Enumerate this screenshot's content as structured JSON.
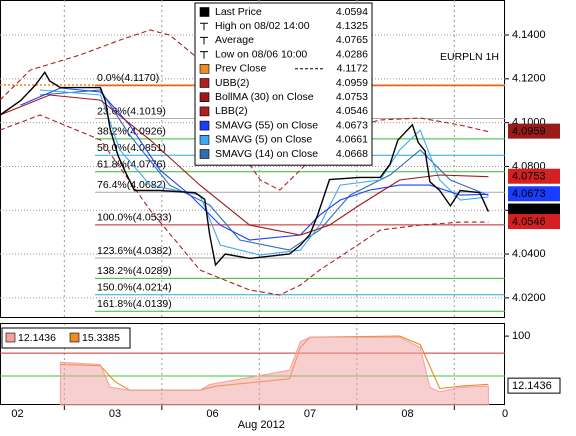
{
  "chart_data": [
    {
      "type": "line",
      "annotation": "EURPLN 1H",
      "xlabel": "Aug 2012",
      "xlim": [
        -0.18,
        5.0
      ],
      "xticks": [
        {
          "value": 0,
          "label": "02"
        },
        {
          "value": 1,
          "label": "03"
        },
        {
          "value": 2,
          "label": "06"
        },
        {
          "value": 3,
          "label": "07"
        },
        {
          "value": 4,
          "label": "08"
        },
        {
          "value": 5,
          "label": "0"
        }
      ],
      "ylim": [
        4.0108,
        4.156
      ],
      "yticks": [
        {
          "value": 4.14,
          "label": "4.1400"
        },
        {
          "value": 4.12,
          "label": "4.1200"
        },
        {
          "value": 4.1,
          "label": "4.1000"
        },
        {
          "value": 4.08,
          "label": "4.0800"
        },
        {
          "value": 4.06,
          "label": "4.0600"
        },
        {
          "value": 4.04,
          "label": "4.0400"
        },
        {
          "value": 4.02,
          "label": "4.0200"
        }
      ],
      "grid": true,
      "series": [
        {
          "name": "Last Price",
          "color": "#000000",
          "tag_color": "#000000",
          "x": [
            -0.18,
            0.03,
            0.18,
            0.28,
            0.33,
            0.44,
            0.64,
            0.85,
            0.9,
            0.95,
            1.03,
            1.1,
            1.2,
            1.46,
            1.82,
            1.92,
            1.97,
            2.03,
            2.13,
            2.38,
            2.79,
            2.9,
            3.0,
            3.08,
            3.2,
            3.51,
            3.72,
            3.82,
            3.9,
            4.05,
            4.11,
            4.18,
            4.23,
            4.33,
            4.44,
            4.54,
            4.74,
            4.83
          ],
          "values": [
            4.1035,
            4.11,
            4.117,
            4.123,
            4.119,
            4.116,
            4.116,
            4.116,
            4.11,
            4.097,
            4.085,
            4.078,
            4.069,
            4.069,
            4.068,
            4.065,
            4.049,
            4.035,
            4.04,
            4.038,
            4.04,
            4.044,
            4.049,
            4.058,
            4.074,
            4.075,
            4.075,
            4.081,
            4.092,
            4.099,
            4.091,
            4.087,
            4.073,
            4.069,
            4.062,
            4.069,
            4.068,
            4.0594
          ]
        },
        {
          "name": "UBB(2)",
          "color": "#b02020",
          "dashed": true,
          "tag_color": "#9b1b1b",
          "x": [
            -0.18,
            0.13,
            0.64,
            1.05,
            1.36,
            1.56,
            1.87,
            2.08,
            2.28,
            2.49,
            2.69,
            2.9,
            3.1,
            3.31,
            3.72,
            4.13,
            4.54,
            4.83
          ],
          "values": [
            4.1103,
            4.124,
            4.1309,
            4.1377,
            4.1423,
            4.14,
            4.1286,
            4.1103,
            4.0875,
            4.0738,
            4.0692,
            4.0784,
            4.0875,
            4.0966,
            4.1012,
            4.1021,
            4.0989,
            4.0959
          ]
        },
        {
          "name": "BollMA (30) on Close",
          "color": "#a01818",
          "tag_color": "#d42020",
          "x": [
            -0.18,
            0.33,
            0.85,
            1.36,
            1.87,
            2.38,
            2.9,
            3.2,
            3.51,
            3.92,
            4.33,
            4.83
          ],
          "values": [
            4.1035,
            4.1126,
            4.1103,
            4.0921,
            4.0715,
            4.0532,
            4.0487,
            4.0532,
            4.0624,
            4.0738,
            4.0761,
            4.0753
          ]
        },
        {
          "name": "LBB(2)",
          "color": "#b02020",
          "dashed": true,
          "tag_color": "#d42020",
          "x": [
            -0.18,
            0.23,
            0.85,
            1.36,
            1.87,
            2.38,
            2.69,
            2.9,
            3.1,
            3.41,
            3.72,
            4.13,
            4.54,
            4.83
          ],
          "values": [
            4.0966,
            4.1035,
            4.0921,
            4.0601,
            4.0327,
            4.0236,
            4.0213,
            4.0258,
            4.0327,
            4.0418,
            4.051,
            4.0532,
            4.0546,
            4.0546
          ]
        },
        {
          "name": "SMAVG (55) on Close",
          "color": "#1a3cff",
          "tag_color": "#1a3cff",
          "x": [
            0.03,
            0.44,
            0.85,
            1.15,
            1.46,
            1.77,
            2.08,
            2.38,
            2.9,
            3.1,
            3.31,
            3.61,
            3.92,
            4.23,
            4.54,
            4.83
          ],
          "values": [
            4.108,
            4.1158,
            4.114,
            4.0989,
            4.0784,
            4.0669,
            4.0532,
            4.0464,
            4.0487,
            4.0578,
            4.0647,
            4.0692,
            4.0715,
            4.0715,
            4.0669,
            4.0673
          ]
        },
        {
          "name": "SMAVG (5) on Close",
          "color": "#3fa9f5",
          "x": [
            0.23,
            0.85,
            1.05,
            1.36,
            1.87,
            2.08,
            2.49,
            2.9,
            3.1,
            3.31,
            3.72,
            3.92,
            4.13,
            4.33,
            4.54,
            4.83
          ],
          "values": [
            4.1149,
            4.1126,
            4.0875,
            4.0715,
            4.0669,
            4.0441,
            4.0395,
            4.0418,
            4.0532,
            4.0715,
            4.0738,
            4.0875,
            4.0966,
            4.0738,
            4.0647,
            4.0661
          ]
        },
        {
          "name": "SMAVG (14) on Close",
          "color": "#2f6db5",
          "x": [
            0.23,
            0.85,
            1.15,
            1.56,
            1.97,
            2.28,
            2.79,
            3.1,
            3.41,
            3.82,
            4.13,
            4.44,
            4.83
          ],
          "values": [
            4.1126,
            4.1149,
            4.0943,
            4.0715,
            4.0624,
            4.0464,
            4.0418,
            4.051,
            4.0669,
            4.0761,
            4.0875,
            4.0738,
            4.0668
          ]
        }
      ],
      "stats": [
        {
          "label": "High on 08/02 14:00",
          "value": 4.1325
        },
        {
          "label": "Average",
          "value": 4.0765
        },
        {
          "label": "Low on 08/06 10:00",
          "value": 4.0286
        },
        {
          "label": "Prev Close",
          "value": 4.1172,
          "color": "#f08a24",
          "line": true
        }
      ],
      "fib_levels": [
        {
          "label": "0.0%(4.1170)",
          "value": 4.117,
          "color": "#e0502a"
        },
        {
          "label": "23.6%(4.1019)",
          "value": 4.1019,
          "color": "#aaaaaa"
        },
        {
          "label": "38.2%(4.0926)",
          "value": 4.0926,
          "color": "#33bb33"
        },
        {
          "label": "50.0%(4.0851)",
          "value": 4.0851,
          "color": "#22aadd"
        },
        {
          "label": "61.8%(4.0776)",
          "value": 4.0776,
          "color": "#33bb33"
        },
        {
          "label": "76.4%(4.0682)",
          "value": 4.0682,
          "color": "#aaaaaa"
        },
        {
          "label": "100.0%(4.0533)",
          "value": 4.0533,
          "color": "#c82020"
        },
        {
          "label": "123.6%(4.0382)",
          "value": 4.0382,
          "color": "#aaaaaa"
        },
        {
          "label": "138.2%(4.0289)",
          "value": 4.0289,
          "color": "#33bb33"
        },
        {
          "label": "150.0%(4.0214)",
          "value": 4.0214,
          "color": "#22aadd"
        },
        {
          "label": "161.8%(4.0139)",
          "value": 4.0139,
          "color": "#33bb33"
        }
      ]
    },
    {
      "type": "line",
      "xlim": [
        -0.18,
        5.0
      ],
      "ylim": [
        -21,
        123
      ],
      "yticks": [
        100
      ],
      "levels": [
        {
          "value": 70,
          "color": "#d03030"
        },
        {
          "value": 30,
          "color": "#33cc33"
        }
      ],
      "series": [
        {
          "color": "#f2a0a0",
          "area": true,
          "tag_color": "#ffffff",
          "x": [
            0.44,
            0.85,
            0.95,
            1.15,
            1.87,
            1.97,
            2.79,
            2.9,
            3.0,
            3.92,
            4.13,
            4.23,
            4.33,
            4.54,
            4.83
          ],
          "values": [
            54,
            50,
            10,
            5,
            5,
            15,
            40,
            90,
            98,
            98,
            80,
            10,
            2,
            10,
            12.1436
          ]
        },
        {
          "color": "#f08a24",
          "x": [
            0.44,
            0.85,
            1.0,
            1.15,
            1.87,
            2.03,
            2.38,
            2.79,
            2.9,
            3.0,
            3.92,
            4.13,
            4.33,
            4.54,
            4.83
          ],
          "values": [
            50,
            48,
            20,
            5,
            5,
            12,
            18,
            25,
            80,
            98,
            100,
            85,
            8,
            12,
            15.3385
          ]
        }
      ]
    }
  ]
}
